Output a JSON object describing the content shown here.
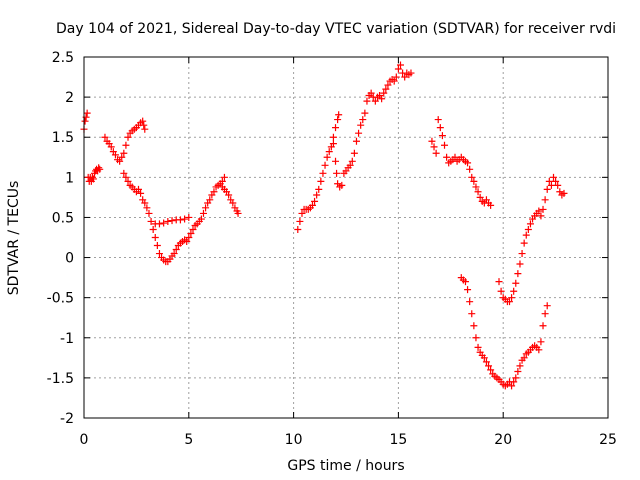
{
  "chart_data": {
    "type": "scatter",
    "title": "Day 104 of 2021, Sidereal Day-to-day VTEC variation (SDTVAR) for receiver rvdi",
    "xlabel": "GPS time / hours",
    "ylabel": "SDTVAR / TECUs",
    "xlim": [
      0,
      25
    ],
    "ylim": [
      -2,
      2.5
    ],
    "x_ticks": [
      "0",
      "5",
      "10",
      "15",
      "20",
      "25"
    ],
    "y_ticks": [
      "2.5",
      "2",
      "1.5",
      "1",
      "0.5",
      "0",
      "-0.5",
      "-1",
      "-1.5",
      "-2"
    ],
    "grid": true,
    "marker": "+",
    "color": "#ff0000",
    "series": [
      {
        "points": [
          [
            0.0,
            1.6
          ],
          [
            0.05,
            1.7
          ],
          [
            0.1,
            1.75
          ],
          [
            0.15,
            1.8
          ],
          [
            0.2,
            1.0
          ],
          [
            0.25,
            0.95
          ],
          [
            0.3,
            1.0
          ],
          [
            0.35,
            0.95
          ],
          [
            0.4,
            1.0
          ],
          [
            0.45,
            0.98
          ],
          [
            0.5,
            1.05
          ],
          [
            0.55,
            1.08
          ],
          [
            0.6,
            1.1
          ],
          [
            0.65,
            1.08
          ],
          [
            0.7,
            1.12
          ],
          [
            0.75,
            1.1
          ],
          [
            1.0,
            1.5
          ],
          [
            1.1,
            1.45
          ],
          [
            1.2,
            1.42
          ],
          [
            1.3,
            1.38
          ],
          [
            1.4,
            1.32
          ],
          [
            1.5,
            1.28
          ],
          [
            1.6,
            1.22
          ],
          [
            1.7,
            1.2
          ],
          [
            1.8,
            1.25
          ],
          [
            1.9,
            1.3
          ],
          [
            2.0,
            1.4
          ],
          [
            2.1,
            1.5
          ],
          [
            2.2,
            1.55
          ],
          [
            2.3,
            1.58
          ],
          [
            2.4,
            1.6
          ],
          [
            2.5,
            1.62
          ],
          [
            2.6,
            1.65
          ],
          [
            2.7,
            1.68
          ],
          [
            2.8,
            1.7
          ],
          [
            2.85,
            1.65
          ],
          [
            2.9,
            1.6
          ],
          [
            1.9,
            1.05
          ],
          [
            2.0,
            1.0
          ],
          [
            2.1,
            0.95
          ],
          [
            2.2,
            0.9
          ],
          [
            2.3,
            0.88
          ],
          [
            2.4,
            0.85
          ],
          [
            2.5,
            0.82
          ],
          [
            2.6,
            0.85
          ],
          [
            2.7,
            0.8
          ],
          [
            2.8,
            0.72
          ],
          [
            2.9,
            0.68
          ],
          [
            3.0,
            0.62
          ],
          [
            3.1,
            0.55
          ],
          [
            3.2,
            0.45
          ],
          [
            3.3,
            0.35
          ],
          [
            3.4,
            0.25
          ],
          [
            3.5,
            0.15
          ],
          [
            3.6,
            0.05
          ],
          [
            3.7,
            0.0
          ],
          [
            3.8,
            -0.03
          ],
          [
            3.9,
            -0.05
          ],
          [
            4.0,
            -0.05
          ],
          [
            4.1,
            -0.02
          ],
          [
            4.2,
            0.02
          ],
          [
            4.3,
            0.05
          ],
          [
            4.4,
            0.1
          ],
          [
            4.5,
            0.15
          ],
          [
            4.6,
            0.18
          ],
          [
            4.7,
            0.2
          ],
          [
            4.8,
            0.22
          ],
          [
            4.9,
            0.2
          ],
          [
            5.0,
            0.25
          ],
          [
            5.1,
            0.3
          ],
          [
            5.2,
            0.35
          ],
          [
            5.3,
            0.4
          ],
          [
            5.4,
            0.42
          ],
          [
            5.5,
            0.45
          ],
          [
            5.6,
            0.48
          ],
          [
            5.7,
            0.55
          ],
          [
            5.8,
            0.62
          ],
          [
            5.9,
            0.68
          ],
          [
            6.0,
            0.72
          ],
          [
            6.1,
            0.78
          ],
          [
            6.2,
            0.82
          ],
          [
            6.3,
            0.88
          ],
          [
            6.4,
            0.9
          ],
          [
            6.5,
            0.92
          ],
          [
            6.6,
            0.95
          ],
          [
            6.7,
            1.0
          ],
          [
            3.4,
            0.42
          ],
          [
            3.6,
            0.42
          ],
          [
            3.8,
            0.43
          ],
          [
            4.0,
            0.45
          ],
          [
            4.2,
            0.46
          ],
          [
            4.4,
            0.47
          ],
          [
            4.6,
            0.47
          ],
          [
            4.8,
            0.48
          ],
          [
            5.0,
            0.5
          ],
          [
            6.6,
            0.88
          ],
          [
            6.7,
            0.85
          ],
          [
            6.8,
            0.82
          ],
          [
            6.9,
            0.78
          ],
          [
            7.0,
            0.72
          ],
          [
            7.1,
            0.68
          ],
          [
            7.2,
            0.62
          ],
          [
            7.3,
            0.58
          ],
          [
            7.35,
            0.55
          ],
          [
            10.2,
            0.35
          ],
          [
            10.3,
            0.45
          ],
          [
            10.4,
            0.55
          ],
          [
            10.5,
            0.6
          ],
          [
            10.6,
            0.6
          ],
          [
            10.7,
            0.6
          ],
          [
            10.8,
            0.62
          ],
          [
            10.9,
            0.65
          ],
          [
            11.0,
            0.7
          ],
          [
            11.1,
            0.78
          ],
          [
            11.2,
            0.85
          ],
          [
            11.3,
            0.95
          ],
          [
            11.4,
            1.05
          ],
          [
            11.5,
            1.15
          ],
          [
            11.6,
            1.25
          ],
          [
            11.7,
            1.32
          ],
          [
            11.8,
            1.38
          ],
          [
            11.9,
            1.42
          ],
          [
            12.0,
            1.2
          ],
          [
            12.05,
            1.05
          ],
          [
            12.1,
            0.92
          ],
          [
            12.2,
            0.88
          ],
          [
            12.3,
            0.9
          ],
          [
            11.9,
            1.5
          ],
          [
            12.0,
            1.62
          ],
          [
            12.1,
            1.72
          ],
          [
            12.15,
            1.78
          ],
          [
            12.4,
            1.05
          ],
          [
            12.5,
            1.08
          ],
          [
            12.6,
            1.12
          ],
          [
            12.7,
            1.15
          ],
          [
            12.8,
            1.2
          ],
          [
            12.9,
            1.3
          ],
          [
            13.0,
            1.45
          ],
          [
            13.1,
            1.55
          ],
          [
            13.2,
            1.65
          ],
          [
            13.3,
            1.72
          ],
          [
            13.4,
            1.8
          ],
          [
            13.5,
            1.95
          ],
          [
            13.6,
            2.02
          ],
          [
            13.7,
            2.05
          ],
          [
            13.8,
            2.0
          ],
          [
            13.9,
            1.95
          ],
          [
            14.0,
            2.0
          ],
          [
            14.1,
            2.02
          ],
          [
            14.2,
            1.98
          ],
          [
            14.3,
            2.05
          ],
          [
            14.4,
            2.1
          ],
          [
            14.5,
            2.15
          ],
          [
            14.6,
            2.2
          ],
          [
            14.7,
            2.22
          ],
          [
            14.8,
            2.2
          ],
          [
            14.9,
            2.25
          ],
          [
            15.0,
            2.35
          ],
          [
            15.1,
            2.4
          ],
          [
            15.2,
            2.3
          ],
          [
            15.3,
            2.25
          ],
          [
            15.4,
            2.3
          ],
          [
            15.5,
            2.28
          ],
          [
            15.6,
            2.3
          ],
          [
            16.6,
            1.45
          ],
          [
            16.7,
            1.38
          ],
          [
            16.8,
            1.3
          ],
          [
            16.9,
            1.72
          ],
          [
            17.0,
            1.62
          ],
          [
            17.1,
            1.52
          ],
          [
            17.2,
            1.4
          ],
          [
            17.3,
            1.25
          ],
          [
            17.4,
            1.18
          ],
          [
            17.5,
            1.2
          ],
          [
            17.6,
            1.22
          ],
          [
            17.7,
            1.25
          ],
          [
            17.8,
            1.2
          ],
          [
            17.9,
            1.22
          ],
          [
            18.0,
            1.25
          ],
          [
            18.1,
            1.22
          ],
          [
            18.2,
            1.2
          ],
          [
            18.3,
            1.18
          ],
          [
            18.4,
            1.1
          ],
          [
            18.5,
            1.0
          ],
          [
            18.6,
            0.95
          ],
          [
            18.7,
            0.88
          ],
          [
            18.8,
            0.82
          ],
          [
            18.9,
            0.75
          ],
          [
            19.0,
            0.7
          ],
          [
            19.1,
            0.68
          ],
          [
            19.2,
            0.72
          ],
          [
            19.3,
            0.68
          ],
          [
            19.4,
            0.65
          ],
          [
            18.0,
            -0.25
          ],
          [
            18.1,
            -0.28
          ],
          [
            18.2,
            -0.3
          ],
          [
            18.3,
            -0.4
          ],
          [
            18.4,
            -0.55
          ],
          [
            18.5,
            -0.7
          ],
          [
            18.6,
            -0.85
          ],
          [
            18.7,
            -1.0
          ],
          [
            18.8,
            -1.12
          ],
          [
            18.9,
            -1.18
          ],
          [
            19.0,
            -1.22
          ],
          [
            19.1,
            -1.25
          ],
          [
            19.2,
            -1.3
          ],
          [
            19.3,
            -1.35
          ],
          [
            19.4,
            -1.4
          ],
          [
            19.5,
            -1.45
          ],
          [
            19.6,
            -1.48
          ],
          [
            19.7,
            -1.5
          ],
          [
            19.8,
            -1.52
          ],
          [
            19.9,
            -1.55
          ],
          [
            20.0,
            -1.58
          ],
          [
            20.1,
            -1.6
          ],
          [
            20.2,
            -1.58
          ],
          [
            20.3,
            -1.55
          ],
          [
            20.4,
            -1.6
          ],
          [
            20.5,
            -1.55
          ],
          [
            20.6,
            -1.5
          ],
          [
            20.7,
            -1.42
          ],
          [
            20.8,
            -1.35
          ],
          [
            20.9,
            -1.28
          ],
          [
            21.0,
            -1.25
          ],
          [
            21.1,
            -1.2
          ],
          [
            21.2,
            -1.18
          ],
          [
            21.3,
            -1.15
          ],
          [
            21.4,
            -1.12
          ],
          [
            21.5,
            -1.1
          ],
          [
            21.6,
            -1.12
          ],
          [
            21.7,
            -1.15
          ],
          [
            21.8,
            -1.05
          ],
          [
            21.9,
            -0.85
          ],
          [
            22.0,
            -0.7
          ],
          [
            22.1,
            -0.6
          ],
          [
            19.8,
            -0.3
          ],
          [
            19.9,
            -0.42
          ],
          [
            20.0,
            -0.5
          ],
          [
            20.1,
            -0.52
          ],
          [
            20.2,
            -0.55
          ],
          [
            20.3,
            -0.55
          ],
          [
            20.4,
            -0.5
          ],
          [
            20.5,
            -0.42
          ],
          [
            20.6,
            -0.32
          ],
          [
            20.7,
            -0.2
          ],
          [
            20.8,
            -0.08
          ],
          [
            20.9,
            0.05
          ],
          [
            21.0,
            0.18
          ],
          [
            21.1,
            0.28
          ],
          [
            21.2,
            0.35
          ],
          [
            21.3,
            0.42
          ],
          [
            21.4,
            0.48
          ],
          [
            21.5,
            0.52
          ],
          [
            21.6,
            0.55
          ],
          [
            21.7,
            0.58
          ],
          [
            21.8,
            0.52
          ],
          [
            21.9,
            0.6
          ],
          [
            22.0,
            0.72
          ],
          [
            22.1,
            0.85
          ],
          [
            22.2,
            0.95
          ],
          [
            22.3,
            0.9
          ],
          [
            22.4,
            1.0
          ],
          [
            22.5,
            0.95
          ],
          [
            22.6,
            0.9
          ],
          [
            22.7,
            0.82
          ],
          [
            22.8,
            0.78
          ],
          [
            22.9,
            0.8
          ]
        ]
      }
    ]
  }
}
